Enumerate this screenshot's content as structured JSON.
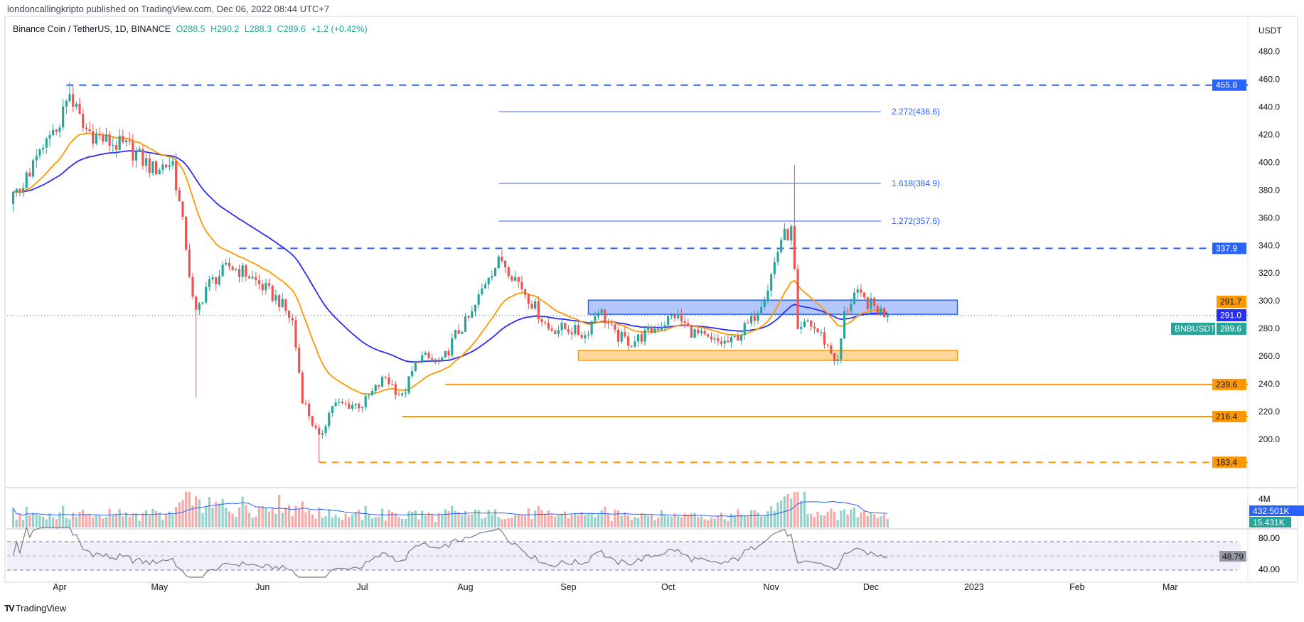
{
  "publish_line": "londoncallingkripto published on TradingView.com, Dec 06, 2022 08:44 UTC+7",
  "legend": {
    "symbol": "Binance Coin / TetherUS, 1D, BINANCE",
    "open": "O288.5",
    "high": "H290.2",
    "low": "L288.3",
    "close": "C289.6",
    "change": "+1.2 (+0.42%)"
  },
  "currency": "USDT",
  "footer": {
    "logo": "TradingView"
  },
  "colors": {
    "up": "#26a69a",
    "down": "#ef5350",
    "ema_fast": "#ff9800",
    "ema_slow": "#2a2ef0",
    "blue_level": "#2962ff",
    "orange_level": "#ff9800"
  },
  "chart_data": {
    "type": "candlestick",
    "symbol": "BNBUSDT",
    "ylim": [
      180,
      490
    ],
    "y_ticks": [
      "200.0",
      "220.0",
      "240.0",
      "260.0",
      "280.0",
      "300.0",
      "320.0",
      "340.0",
      "360.0",
      "380.0",
      "400.0",
      "420.0",
      "440.0",
      "460.0",
      "480.0"
    ],
    "x_ticks": [
      {
        "label": "Apr",
        "date": "2022-04-01"
      },
      {
        "label": "May",
        "date": "2022-05-01"
      },
      {
        "label": "Jun",
        "date": "2022-06-01"
      },
      {
        "label": "Jul",
        "date": "2022-07-01"
      },
      {
        "label": "Aug",
        "date": "2022-08-01"
      },
      {
        "label": "Sep",
        "date": "2022-09-01"
      },
      {
        "label": "Oct",
        "date": "2022-10-01"
      },
      {
        "label": "Nov",
        "date": "2022-11-01"
      },
      {
        "label": "Dec",
        "date": "2022-12-01"
      },
      {
        "label": "2023",
        "date": "2023-01-01"
      },
      {
        "label": "Feb",
        "date": "2023-02-01"
      },
      {
        "label": "Mar",
        "date": "2023-03-01"
      }
    ],
    "close_waypoints": [
      [
        "2022-03-18",
        375
      ],
      [
        "2022-03-25",
        400
      ],
      [
        "2022-04-01",
        430
      ],
      [
        "2022-04-04",
        450
      ],
      [
        "2022-04-08",
        425
      ],
      [
        "2022-04-15",
        415
      ],
      [
        "2022-04-22",
        410
      ],
      [
        "2022-04-29",
        395
      ],
      [
        "2022-05-05",
        400
      ],
      [
        "2022-05-09",
        340
      ],
      [
        "2022-05-11",
        300
      ],
      [
        "2022-05-12",
        290
      ],
      [
        "2022-05-15",
        310
      ],
      [
        "2022-05-22",
        325
      ],
      [
        "2022-05-27",
        320
      ],
      [
        "2022-06-01",
        310
      ],
      [
        "2022-06-06",
        300
      ],
      [
        "2022-06-10",
        285
      ],
      [
        "2022-06-13",
        230
      ],
      [
        "2022-06-18",
        200
      ],
      [
        "2022-06-22",
        225
      ],
      [
        "2022-06-28",
        225
      ],
      [
        "2022-07-01",
        225
      ],
      [
        "2022-07-08",
        245
      ],
      [
        "2022-07-13",
        230
      ],
      [
        "2022-07-18",
        260
      ],
      [
        "2022-07-25",
        255
      ],
      [
        "2022-07-29",
        275
      ],
      [
        "2022-08-03",
        290
      ],
      [
        "2022-08-08",
        320
      ],
      [
        "2022-08-12",
        330
      ],
      [
        "2022-08-18",
        310
      ],
      [
        "2022-08-22",
        295
      ],
      [
        "2022-08-26",
        280
      ],
      [
        "2022-09-01",
        280
      ],
      [
        "2022-09-06",
        275
      ],
      [
        "2022-09-10",
        295
      ],
      [
        "2022-09-15",
        275
      ],
      [
        "2022-09-20",
        270
      ],
      [
        "2022-09-27",
        280
      ],
      [
        "2022-10-03",
        290
      ],
      [
        "2022-10-08",
        278
      ],
      [
        "2022-10-14",
        270
      ],
      [
        "2022-10-20",
        270
      ],
      [
        "2022-10-26",
        285
      ],
      [
        "2022-10-31",
        310
      ],
      [
        "2022-11-04",
        345
      ],
      [
        "2022-11-07",
        350
      ],
      [
        "2022-11-08",
        320
      ],
      [
        "2022-11-09",
        275
      ],
      [
        "2022-11-12",
        285
      ],
      [
        "2022-11-16",
        275
      ],
      [
        "2022-11-21",
        255
      ],
      [
        "2022-11-23",
        290
      ],
      [
        "2022-11-26",
        305
      ],
      [
        "2022-11-29",
        300
      ],
      [
        "2022-12-06",
        289.6
      ]
    ],
    "wick_extremes": [
      [
        "2022-04-04",
        "high",
        458
      ],
      [
        "2022-05-12",
        "low",
        230
      ],
      [
        "2022-06-18",
        "low",
        183.4
      ],
      [
        "2022-11-08",
        "high",
        398
      ]
    ],
    "indicators": {
      "ema_fast_period": 20,
      "ema_slow_period": 50,
      "rsi_period": 14,
      "volume_ma_period": 20
    },
    "levels": [
      {
        "price": 455.8,
        "label": "455.8",
        "style": "dashed",
        "color": "blue",
        "from": "2022-04-03"
      },
      {
        "price": 337.9,
        "label": "337.9",
        "style": "dashed",
        "color": "blue",
        "from": "2022-05-25"
      },
      {
        "price": 239.6,
        "label": "239.6",
        "style": "solid",
        "color": "orange",
        "from": "2022-07-26"
      },
      {
        "price": 216.4,
        "label": "216.4",
        "style": "solid",
        "color": "orange",
        "from": "2022-07-13"
      },
      {
        "price": 183.4,
        "label": "183.4",
        "style": "dashed",
        "color": "orange",
        "from": "2022-06-18"
      }
    ],
    "fib_levels": [
      {
        "price": 436.6,
        "label": "2.272(436.6)"
      },
      {
        "price": 384.9,
        "label": "1.618(384.9)"
      },
      {
        "price": 357.6,
        "label": "1.272(357.6)"
      }
    ],
    "fib_range": [
      "2022-08-11",
      "2022-12-04"
    ],
    "zones": [
      {
        "color": "blue",
        "top": 300.5,
        "bottom": 290.3,
        "from": "2022-09-07",
        "to": "2022-12-27"
      },
      {
        "color": "orange",
        "top": 264.2,
        "bottom": 257,
        "from": "2022-09-04",
        "to": "2022-12-27"
      }
    ],
    "price_badges": {
      "ema_fast": "291.7",
      "ema_slow": "291.0",
      "last": "289.6",
      "symbol_tag": "BNBUSDT"
    },
    "volume": {
      "axis_label": "4M",
      "ma_badge": "432.501K",
      "last_badge": "15.431K"
    },
    "rsi": {
      "axis_top": "80.00",
      "axis_bottom": "40.00",
      "value": "48.79",
      "bands": [
        70,
        50,
        30
      ]
    }
  }
}
